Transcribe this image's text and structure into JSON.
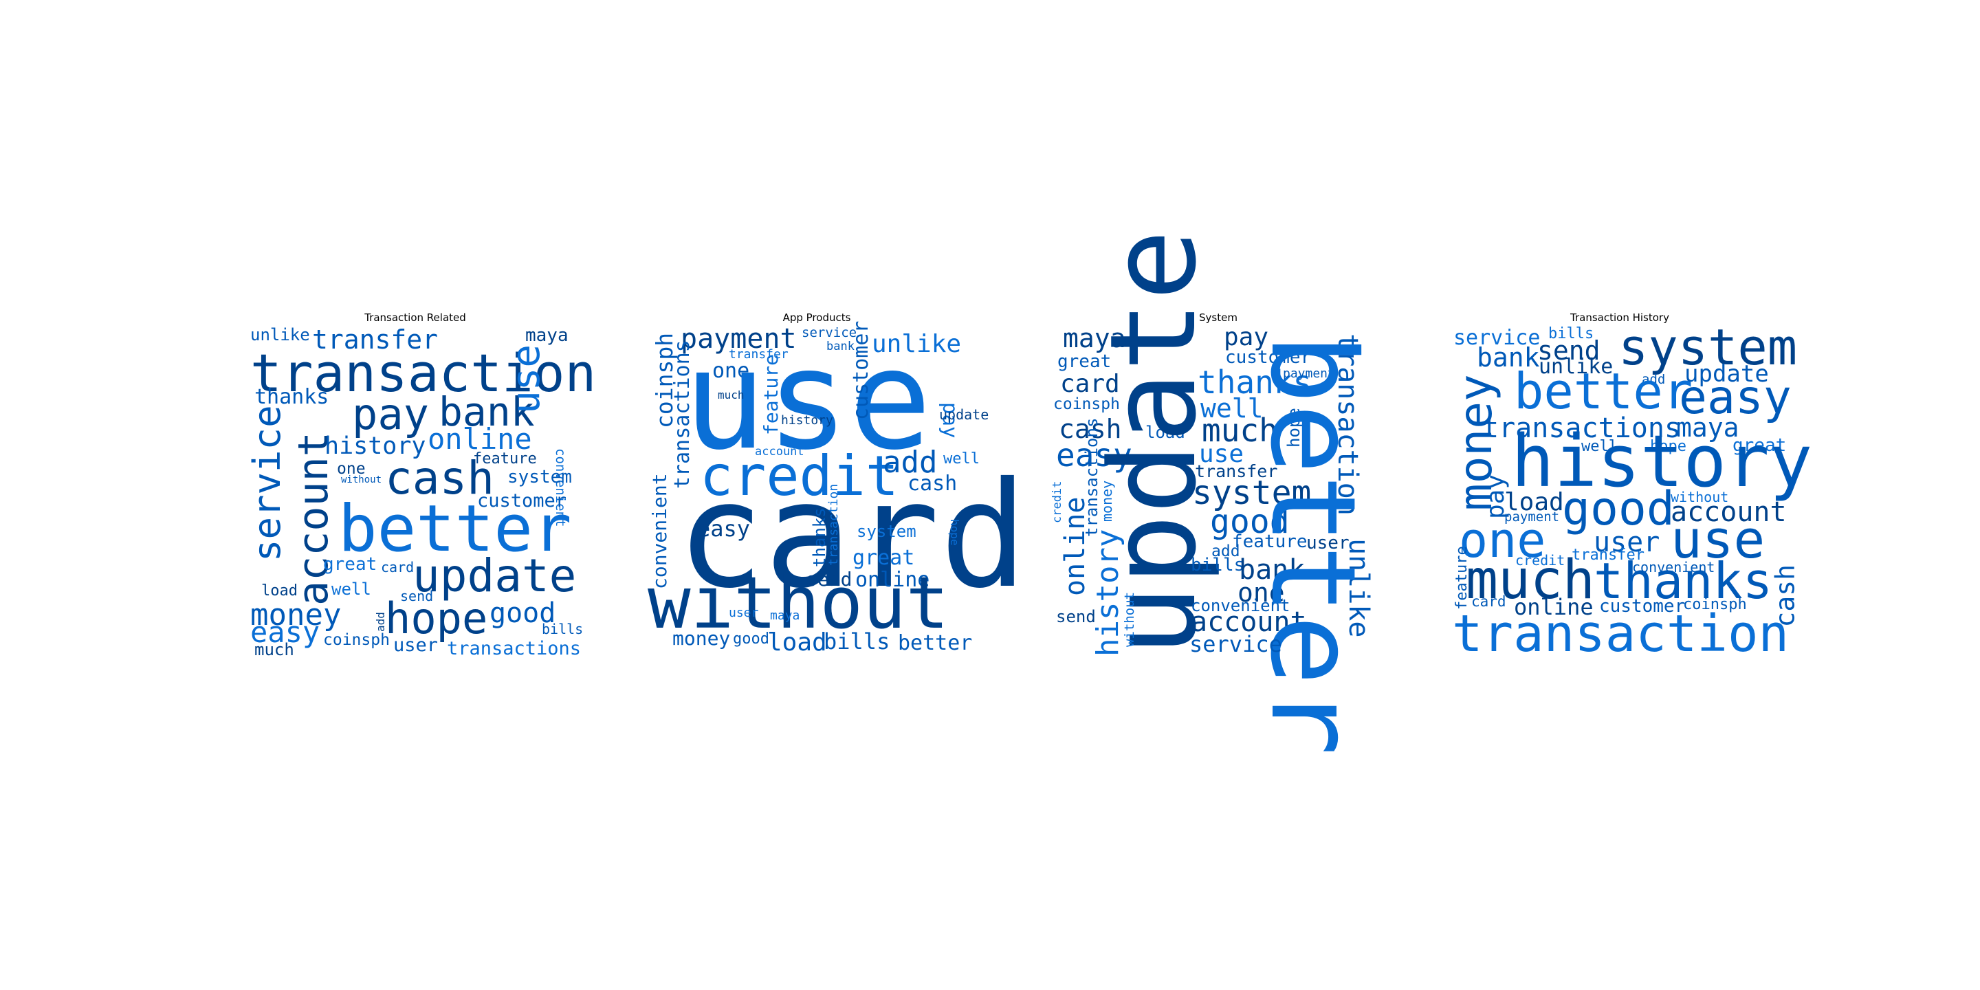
{
  "panels": [
    {
      "title": "Transaction Related",
      "words": [
        "unlike",
        "transfer",
        "maya",
        "transaction",
        "thanks",
        "pay",
        "bank",
        "use",
        "online",
        "convenient",
        "service",
        "account",
        "history",
        "feature",
        "one",
        "without",
        "cash",
        "system",
        "customer",
        "better",
        "great",
        "card",
        "update",
        "load",
        "well",
        "send",
        "money",
        "add",
        "hope",
        "good",
        "easy",
        "bills",
        "much",
        "coinsph",
        "user",
        "transactions"
      ]
    },
    {
      "title": "App Products",
      "words": [
        "payment",
        "service",
        "bank",
        "unlike",
        "coinsph",
        "transfer",
        "one",
        "use",
        "pay",
        "much",
        "feature",
        "customer",
        "update",
        "history",
        "transactions",
        "account",
        "credit",
        "add",
        "well",
        "cash",
        "convenient",
        "card",
        "easy",
        "thanks",
        "transaction",
        "system",
        "hope",
        "great",
        "send",
        "online",
        "without",
        "user",
        "maya",
        "money",
        "good",
        "load",
        "bills",
        "better"
      ]
    },
    {
      "title": "System",
      "words": [
        "maya",
        "pay",
        "great",
        "customer",
        "card",
        "thanks",
        "payment",
        "coinsph",
        "well",
        "transaction",
        "cash",
        "load",
        "much",
        "hope",
        "easy",
        "use",
        "transfer",
        "credit",
        "transactions",
        "money",
        "system",
        "online",
        "good",
        "feature",
        "user",
        "add",
        "update",
        "history",
        "bills",
        "bank",
        "one",
        "without",
        "convenient",
        "account",
        "send",
        "unlike",
        "better",
        "service"
      ]
    },
    {
      "title": "Transaction History",
      "words": [
        "service",
        "bills",
        "system",
        "bank",
        "send",
        "unlike",
        "update",
        "add",
        "better",
        "easy",
        "money",
        "transactions",
        "maya",
        "great",
        "well",
        "hope",
        "history",
        "pay",
        "load",
        "payment",
        "good",
        "account",
        "without",
        "one",
        "use",
        "user",
        "credit",
        "transfer",
        "feature",
        "much",
        "convenient",
        "thanks",
        "cash",
        "card",
        "online",
        "customer",
        "coinsph",
        "transaction"
      ]
    }
  ],
  "colors": {
    "dark": "#00418a",
    "mid": "#0059b8",
    "light": "#0a6fd6"
  }
}
